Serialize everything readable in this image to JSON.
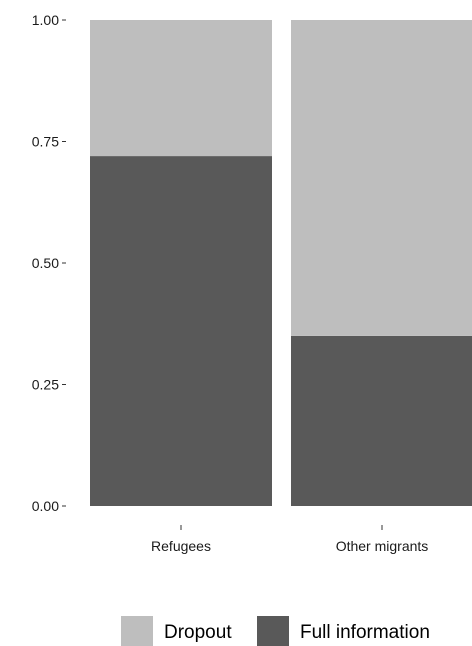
{
  "chart_data": {
    "type": "bar",
    "stacked": true,
    "normalized": true,
    "categories": [
      "Refugees",
      "Other migrants"
    ],
    "series": [
      {
        "name": "Full information",
        "values": [
          0.72,
          0.35
        ],
        "color": "#595959"
      },
      {
        "name": "Dropout",
        "values": [
          0.28,
          0.65
        ],
        "color": "#bebebe"
      }
    ],
    "yticks": [
      "0.00",
      "0.25",
      "0.50",
      "0.75",
      "1.00"
    ],
    "ylim": [
      0,
      1
    ],
    "xlabel": "",
    "ylabel": "",
    "grid": false,
    "legend": {
      "position": "bottom",
      "entries": [
        {
          "label": "Dropout",
          "color": "#bebebe"
        },
        {
          "label": "Full information",
          "color": "#595959"
        }
      ]
    }
  }
}
